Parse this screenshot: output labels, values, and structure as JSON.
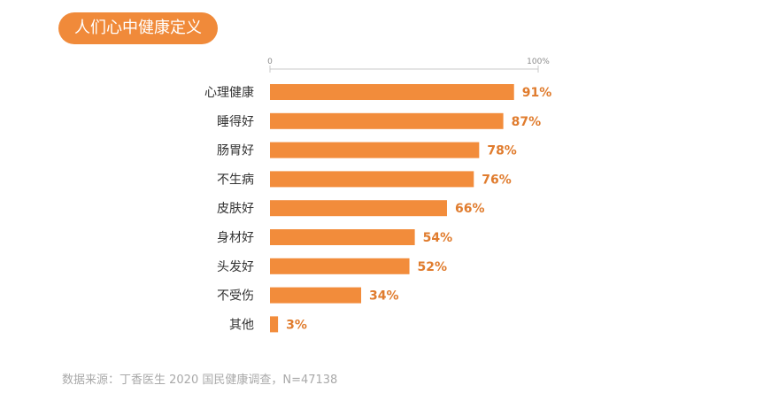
{
  "title": "人们心中健康定义",
  "source": "数据来源：丁香医生 2020 国民健康调查，N=47138",
  "colors": {
    "bar": "#f28c3b",
    "label": "#e07c2e",
    "title_bg": "#f08a3a",
    "axis": "#c8c8c8",
    "tick": "#8a8a8a"
  },
  "chart_data": {
    "type": "bar",
    "orientation": "horizontal",
    "categories": [
      "心理健康",
      "睡得好",
      "肠胃好",
      "不生病",
      "皮肤好",
      "身材好",
      "头发好",
      "不受伤",
      "其他"
    ],
    "values": [
      91,
      87,
      78,
      76,
      66,
      54,
      52,
      34,
      3
    ],
    "value_labels": [
      "91%",
      "87%",
      "78%",
      "76%",
      "66%",
      "54%",
      "52%",
      "34%",
      "3%"
    ],
    "xlim": [
      0,
      100
    ],
    "x_ticks": [
      0,
      100
    ],
    "x_tick_labels": [
      "0",
      "100%"
    ],
    "grid": false,
    "legend": "none"
  }
}
